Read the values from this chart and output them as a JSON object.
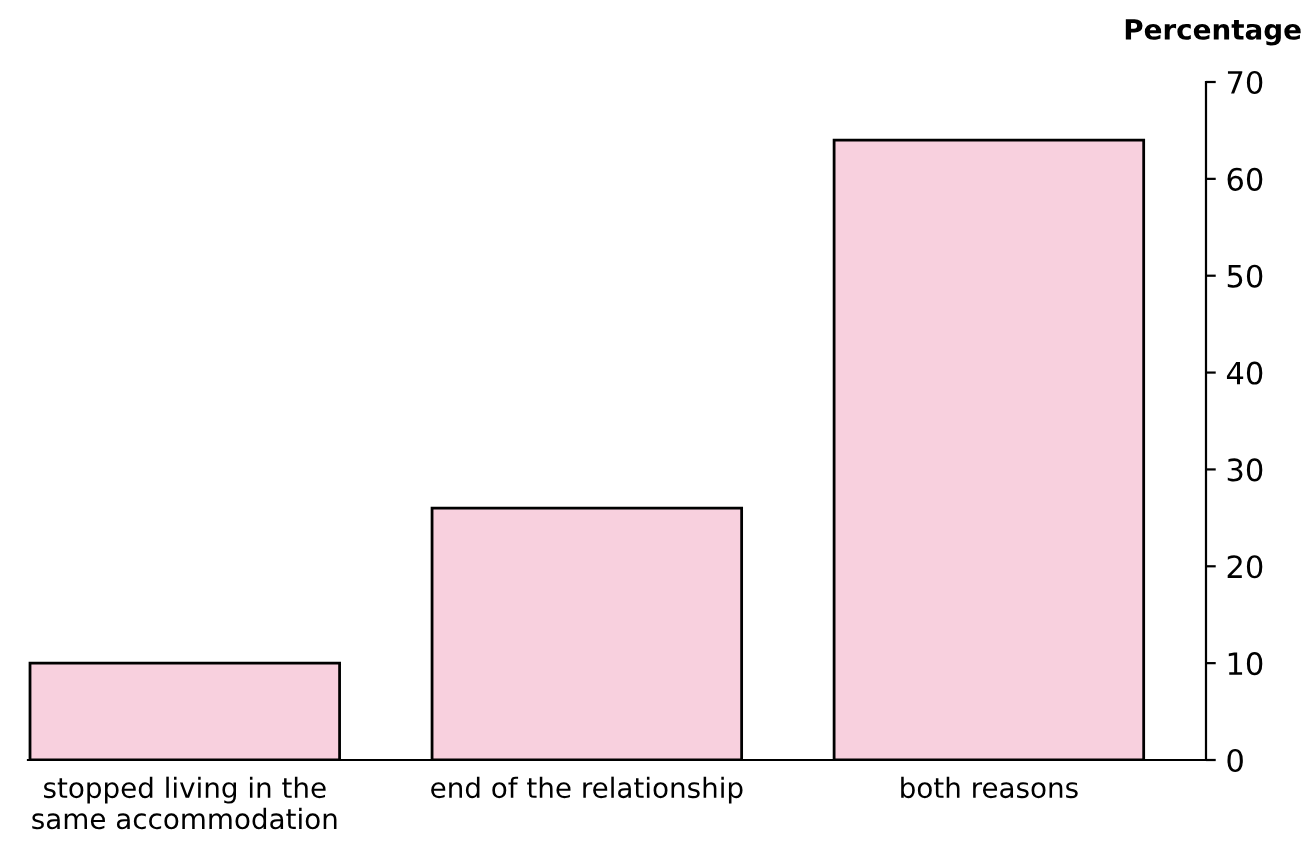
{
  "chart_data": {
    "type": "bar",
    "ylabel": "Percentage",
    "categories": [
      "stopped living in the\nsame accommodation",
      "end of the relationship",
      "both reasons"
    ],
    "values": [
      10,
      26,
      64
    ],
    "color": "#f8d0de",
    "ylim": [
      0,
      70
    ],
    "yticks": [
      0,
      10,
      20,
      30,
      40,
      50,
      60,
      70
    ],
    "grid": false
  }
}
